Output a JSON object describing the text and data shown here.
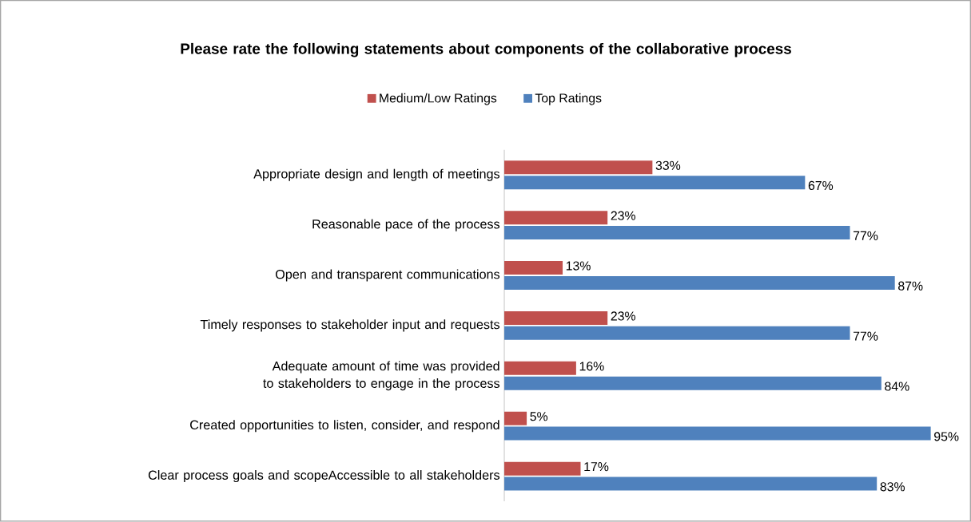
{
  "chart_data": {
    "type": "bar",
    "orientation": "horizontal",
    "title": "Please rate the following statements about components of the collaborative process",
    "categories": [
      "Appropriate design and length of meetings",
      "Reasonable pace of the process",
      "Open and transparent communications",
      "Timely responses to stakeholder input and requests",
      "Adequate amount of time was provided to stakeholders to engage in the process",
      "Created opportunities to listen, consider, and respond",
      "Clear process goals and scopeAccessible to all stakeholders"
    ],
    "series": [
      {
        "name": "Medium/Low Ratings",
        "color": "#c0504d",
        "values": [
          33,
          23,
          13,
          23,
          16,
          5,
          17
        ],
        "value_labels": [
          "33%",
          "23%",
          "13%",
          "23%",
          "16%",
          "5%",
          "17%"
        ]
      },
      {
        "name": "Top Ratings",
        "color": "#4f81bd",
        "values": [
          67,
          77,
          87,
          77,
          84,
          95,
          83
        ],
        "value_labels": [
          "67%",
          "77%",
          "87%",
          "77%",
          "84%",
          "95%",
          "83%"
        ]
      }
    ],
    "legend": "top",
    "tick_labels": "y"
  }
}
